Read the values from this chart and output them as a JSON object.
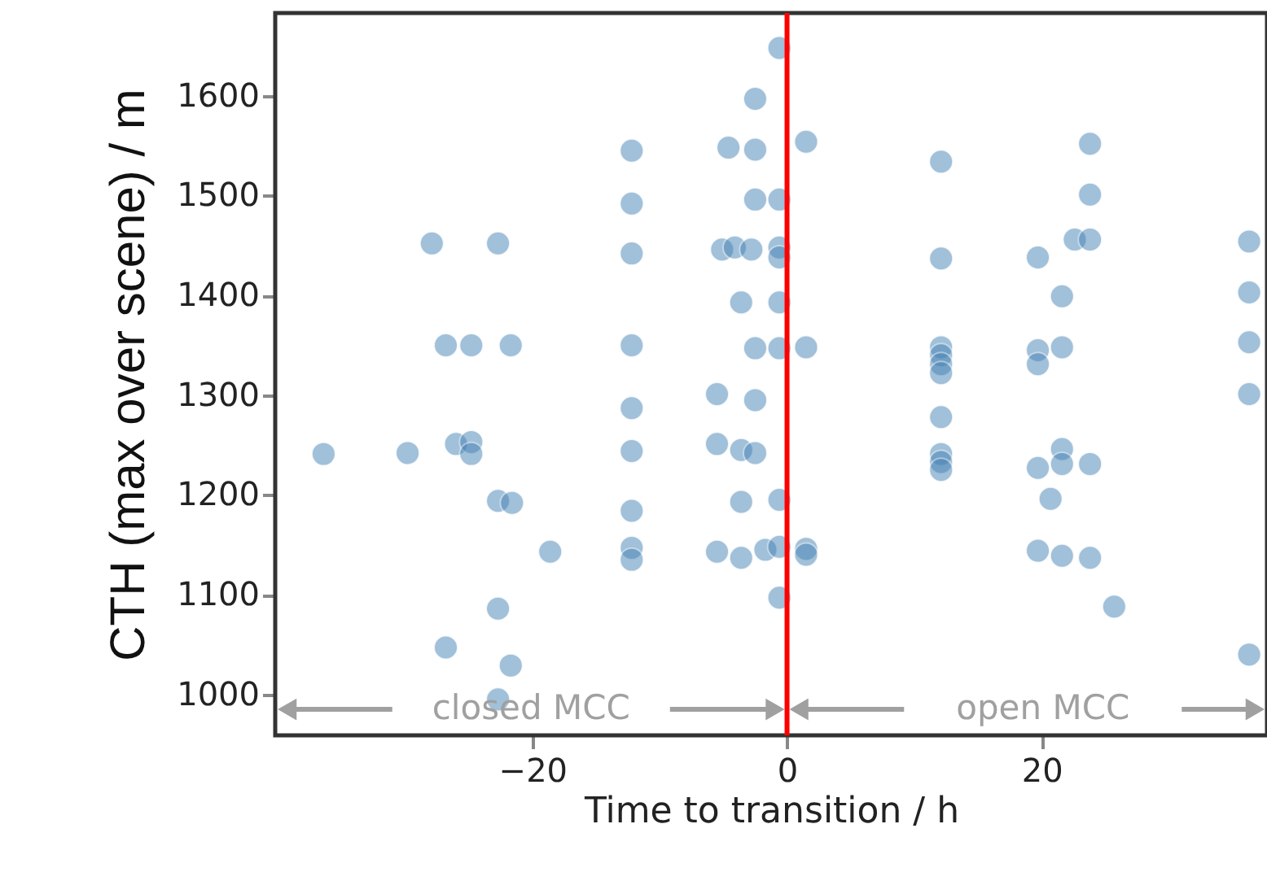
{
  "chart_data": {
    "type": "scatter",
    "xlabel": "Time to transition / h",
    "ylabel": "CTH (max over scene) / m",
    "xlim": [
      -40.2,
      37.7
    ],
    "ylim": [
      959,
      1683
    ],
    "xticks": [
      -20,
      0,
      20
    ],
    "yticks": [
      1000,
      1100,
      1200,
      1300,
      1400,
      1500,
      1600
    ],
    "grid": false,
    "marker": "circle",
    "ref_lines": [
      {
        "axis": "x",
        "value": 0,
        "color": "#ff0000"
      }
    ],
    "annotations": [
      {
        "text": "closed MCC",
        "x": 0,
        "y": 985
      },
      "open MCC"
    ],
    "series": [
      {
        "color": "#4682b4",
        "x": [
          -36.4,
          -29.8,
          -27.9,
          -22.7,
          -26.8,
          -24.8,
          -21.7,
          -26,
          -24.8,
          -24.8,
          -22.7,
          -21.6,
          -18.6,
          -22.7,
          -26.8,
          -21.7,
          -22.7,
          -12.2,
          -12.2,
          -12.2,
          -12.2,
          -12.2,
          -12.2,
          -12.2,
          -12.2,
          -12.2,
          -2.5,
          -4.6,
          -2.5,
          -2.5,
          -0.6,
          -5.1,
          -4.1,
          -2.8,
          -0.6,
          -0.6,
          -3.6,
          -0.6,
          -2.5,
          -0.6,
          -5.5,
          -2.5,
          -5.5,
          -3.6,
          -2.5,
          -3.6,
          -0.6,
          -5.5,
          -3.6,
          -1.7,
          -0.6,
          -0.6,
          -0.6,
          1.5,
          1.5,
          1.5,
          1.5,
          12.1,
          12.1,
          12.1,
          12.1,
          12.1,
          12.1,
          12.1,
          12.1,
          12.1,
          12.1,
          19.7,
          19.7,
          19.7,
          21.6,
          21.6,
          23.8,
          23.8,
          22.6,
          23.8,
          19.7,
          21.6,
          21.6,
          23.8,
          20.7,
          19.7,
          21.6,
          23.8,
          25.7,
          36.3,
          36.3,
          36.3,
          36.3,
          36.3
        ],
        "values": [
          1241,
          1242,
          1452,
          1452,
          1350,
          1350,
          1350,
          1251,
          1253,
          1241,
          1194,
          1192,
          1143,
          1086,
          1047,
          1029,
          995,
          1545,
          1492,
          1442,
          1350,
          1287,
          1244,
          1184,
          1147,
          1135,
          1597,
          1548,
          1546,
          1496,
          1496,
          1446,
          1448,
          1446,
          1448,
          1438,
          1393,
          1393,
          1347,
          1347,
          1301,
          1295,
          1251,
          1245,
          1242,
          1193,
          1195,
          1143,
          1137,
          1145,
          1148,
          1097,
          1648,
          1554,
          1348,
          1146,
          1140,
          1534,
          1437,
          1348,
          1340,
          1331,
          1322,
          1278,
          1241,
          1233,
          1225,
          1438,
          1345,
          1331,
          1399,
          1348,
          1552,
          1501,
          1456,
          1456,
          1227,
          1246,
          1231,
          1231,
          1196,
          1144,
          1139,
          1137,
          1088,
          1454,
          1403,
          1353,
          1301,
          1040
        ]
      }
    ]
  }
}
